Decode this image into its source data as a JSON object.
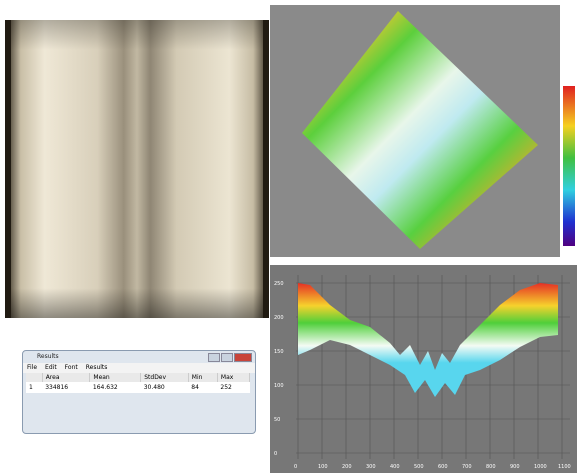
{
  "results": {
    "title": "Results",
    "menu": [
      "File",
      "Edit",
      "Font",
      "Results"
    ],
    "table": {
      "headers": [
        "",
        "Area",
        "Mean",
        "StdDev",
        "Min",
        "Max"
      ],
      "rows": [
        [
          "1",
          "334816",
          "164.632",
          "30.480",
          "84",
          "252"
        ]
      ]
    }
  },
  "profile": {
    "yticks": [
      "250",
      "200",
      "150",
      "100",
      "50",
      "0"
    ],
    "xticks": [
      "0",
      "100",
      "200",
      "300",
      "400",
      "500",
      "600",
      "700",
      "800",
      "900",
      "1000",
      "1100"
    ]
  }
}
